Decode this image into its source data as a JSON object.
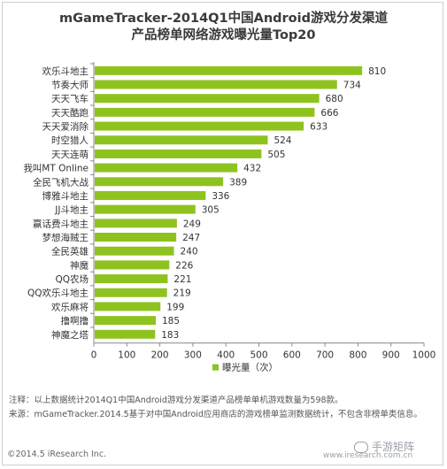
{
  "title_line1": "mGameTracker-2014Q1中国Android游戏分发渠道",
  "title_line2": "产品榜单网络游戏曝光量Top20",
  "chart_data": {
    "type": "bar",
    "orientation": "horizontal",
    "categories": [
      "欢乐斗地主",
      "节奏大师",
      "天天飞车",
      "天天酷跑",
      "天天爱消除",
      "时空猎人",
      "天天连萌",
      "我叫MT Online",
      "全民飞机大战",
      "博雅斗地主",
      "JJ斗地主",
      "赢话费斗地主",
      "梦想海贼王",
      "全民英雄",
      "神魔",
      "QQ农场",
      "QQ欢乐斗地主",
      "欢乐麻将",
      "撸啊撸",
      "神魔之塔"
    ],
    "values": [
      810,
      734,
      680,
      666,
      633,
      524,
      505,
      432,
      389,
      336,
      305,
      249,
      247,
      240,
      226,
      221,
      219,
      199,
      185,
      183
    ],
    "xlim": [
      0,
      1000
    ],
    "xticks": [
      0,
      100,
      200,
      300,
      400,
      500,
      600,
      700,
      800,
      900,
      1000
    ],
    "legend": "曝光量（次）",
    "legend_position": "bottom",
    "bar_color": "#8ec31f",
    "grid": false
  },
  "note1": "注释：以上数据统计2014Q1中国Android游戏分发渠道产品榜单单机游戏数量为598款。",
  "note2": "来源：mGameTracker.2014.5基于对中国Android应用商店的游戏榜单监测数据统计，不包含非榜单类信息。",
  "copyright": "©2014.5 iResearch Inc.",
  "watermark": "手游矩阵",
  "site": "www.iresearch.com.cn"
}
